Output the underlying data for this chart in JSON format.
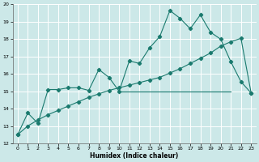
{
  "xlabel": "Humidex (Indice chaleur)",
  "background_color": "#cce8e8",
  "grid_color": "#ffffff",
  "line_color": "#1a7a6e",
  "xlim": [
    -0.5,
    23.5
  ],
  "ylim": [
    12,
    20
  ],
  "yticks": [
    12,
    13,
    14,
    15,
    16,
    17,
    18,
    19,
    20
  ],
  "xticks": [
    0,
    1,
    2,
    3,
    4,
    5,
    6,
    7,
    8,
    9,
    10,
    11,
    12,
    13,
    14,
    15,
    16,
    17,
    18,
    19,
    20,
    21,
    22,
    23
  ],
  "series1_x": [
    0,
    1,
    2,
    3,
    4,
    5,
    6,
    7,
    8,
    9,
    10,
    11,
    12,
    13,
    14,
    15,
    16,
    17,
    18,
    19,
    20,
    21,
    22,
    23
  ],
  "series1_y": [
    12.5,
    13.75,
    13.15,
    15.1,
    15.1,
    15.2,
    15.2,
    15.05,
    16.25,
    15.8,
    15.0,
    16.75,
    16.6,
    17.5,
    18.15,
    19.65,
    19.2,
    18.6,
    19.4,
    18.4,
    18.0,
    16.7,
    15.55,
    14.9
  ],
  "series2_x": [
    0,
    1,
    2,
    3,
    4,
    5,
    6,
    7,
    8,
    9,
    10,
    11,
    12,
    13,
    14,
    15,
    16,
    17,
    18,
    19,
    20,
    21,
    22,
    23
  ],
  "series2_y": [
    12.5,
    13.0,
    13.35,
    13.65,
    13.9,
    14.15,
    14.4,
    14.65,
    14.85,
    15.05,
    15.2,
    15.35,
    15.5,
    15.65,
    15.8,
    16.05,
    16.3,
    16.6,
    16.9,
    17.2,
    17.6,
    17.85,
    18.05,
    14.9
  ],
  "series3_x": [
    10,
    21
  ],
  "series3_y": [
    15.0,
    15.0
  ]
}
